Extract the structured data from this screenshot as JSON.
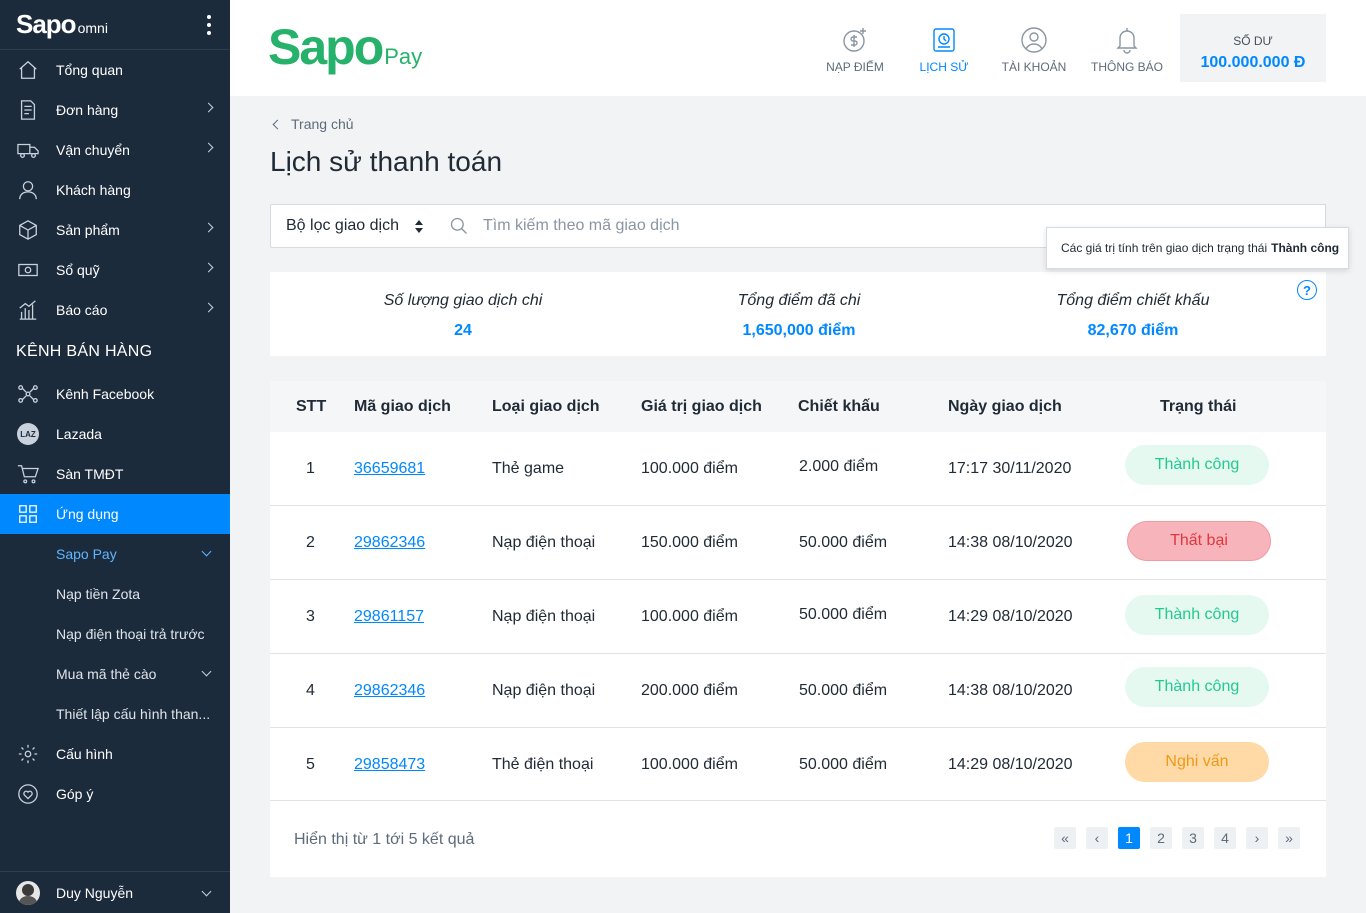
{
  "sidebar": {
    "logo": "Sapo",
    "logo_sub": "omni",
    "items": [
      {
        "label": "Tổng quan"
      },
      {
        "label": "Đơn hàng"
      },
      {
        "label": "Vận chuyển"
      },
      {
        "label": "Khách hàng"
      },
      {
        "label": "Sản phẩm"
      },
      {
        "label": "Sổ quỹ"
      },
      {
        "label": "Báo cáo"
      }
    ],
    "section_title": "KÊNH BÁN HÀNG",
    "channels": [
      {
        "label": "Kênh Facebook"
      },
      {
        "label": "Lazada",
        "badge": "LAZ"
      },
      {
        "label": "Sàn TMĐT"
      },
      {
        "label": "Ứng dụng"
      }
    ],
    "sub_items": [
      {
        "label": "Sapo Pay"
      },
      {
        "label": "Nạp tiền Zota"
      },
      {
        "label": "Nạp điện thoại trả trước"
      },
      {
        "label": "Mua mã thẻ cào"
      },
      {
        "label": "Thiết lập cấu hình than..."
      }
    ],
    "bottom_items": [
      {
        "label": "Cấu hình"
      },
      {
        "label": "Góp ý"
      }
    ],
    "user": "Duy Nguyễn"
  },
  "header": {
    "brand_big": "Sapo",
    "brand_small": "Pay",
    "nav": [
      {
        "label": "NẠP ĐIỂM"
      },
      {
        "label": "LỊCH SỬ"
      },
      {
        "label": "TÀI KHOẢN"
      },
      {
        "label": "THÔNG BÁO"
      }
    ],
    "balance_label": "SỐ DƯ",
    "balance_value": "100.000.000 Đ"
  },
  "main": {
    "breadcrumb": "Trang chủ",
    "title": "Lịch sử thanh toán",
    "filter_label": "Bộ lọc giao dịch",
    "search_placeholder": "Tìm kiếm theo mã giao dịch",
    "tooltip_text": "Các giá trị tính trên giao dịch trạng thái",
    "tooltip_bold": "Thành công",
    "summary": [
      {
        "label": "Số lượng giao dịch chi",
        "value": "24"
      },
      {
        "label": "Tổng điểm đã chi",
        "value": "1,650,000 điểm"
      },
      {
        "label": "Tổng điểm chiết khấu",
        "value": "82,670 điểm"
      }
    ],
    "help_glyph": "?",
    "columns": [
      "STT",
      "Mã giao dịch",
      "Loại giao dịch",
      "Giá trị giao dịch",
      "Chiết khấu",
      "Ngày giao dịch",
      "Trạng thái"
    ],
    "rows": [
      {
        "stt": "1",
        "code": "36659681",
        "type": "Thẻ game",
        "value": "100.000 điểm",
        "discount": "2.000 điểm",
        "date": "17:17 30/11/2020",
        "status": "Thành công",
        "status_kind": "success"
      },
      {
        "stt": "2",
        "code": "29862346",
        "type": "Nạp điện thoại",
        "value": "150.000 điểm",
        "discount": "50.000 điểm",
        "date": "14:38 08/10/2020",
        "status": "Thất bại",
        "status_kind": "failed"
      },
      {
        "stt": "3",
        "code": "29861157",
        "type": "Nạp điện thoại",
        "value": "100.000 điểm",
        "discount": "50.000 điểm",
        "date": "14:29 08/10/2020",
        "status": "Thành công",
        "status_kind": "success"
      },
      {
        "stt": "4",
        "code": "29862346",
        "type": "Nạp điện thoại",
        "value": "200.000 điểm",
        "discount": "50.000 điểm",
        "date": "14:38 08/10/2020",
        "status": "Thành công",
        "status_kind": "success"
      },
      {
        "stt": "5",
        "code": "29858473",
        "type": "Thẻ điện thoại",
        "value": "100.000 điểm",
        "discount": "50.000 điểm",
        "date": "14:29 08/10/2020",
        "status": "Nghi vấn",
        "status_kind": "pending"
      }
    ],
    "result_text": "Hiển thị từ 1 tới 5 kết quả",
    "pagination": {
      "first": "«",
      "prev": "‹",
      "pages": [
        "1",
        "2",
        "3",
        "4"
      ],
      "next": "›",
      "last": "»",
      "current": "1"
    }
  },
  "colors": {
    "accent": "#0088ff",
    "sidebar_bg": "#1c2b3c",
    "brand_green": "#26b26b",
    "success": "#22c993",
    "failed": "#e2363e",
    "pending": "#ee9a19"
  }
}
